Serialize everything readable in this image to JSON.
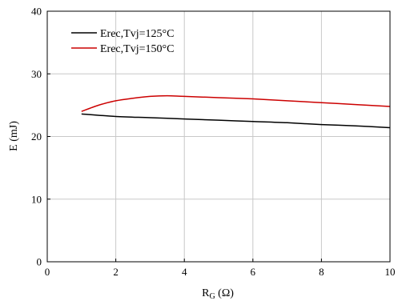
{
  "chart_data": {
    "type": "line",
    "xlabel": "R",
    "xlabel_sub": "G",
    "xlabel_unit": " (Ω)",
    "ylabel": "E (mJ)",
    "xlim": [
      0,
      10
    ],
    "ylim": [
      0,
      40
    ],
    "x_ticks": [
      "0",
      "2",
      "4",
      "6",
      "8",
      "10"
    ],
    "y_ticks": [
      "0",
      "10",
      "20",
      "30",
      "40"
    ],
    "grid": true,
    "legend_position": "top-left",
    "series": [
      {
        "name": "Erec,Tvj=125°C",
        "color": "#000000",
        "x": [
          1,
          2,
          3,
          4,
          5,
          6,
          7,
          8,
          9,
          10
        ],
        "y": [
          23.6,
          23.2,
          23.0,
          22.8,
          22.6,
          22.4,
          22.2,
          21.9,
          21.7,
          21.4
        ]
      },
      {
        "name": "Erec,Tvj=150°C",
        "color": "#cc0000",
        "x": [
          1,
          1.5,
          2,
          2.5,
          3,
          3.5,
          4,
          5,
          6,
          7,
          8,
          9,
          10
        ],
        "y": [
          24.0,
          25.0,
          25.7,
          26.1,
          26.4,
          26.5,
          26.4,
          26.2,
          26.0,
          25.7,
          25.4,
          25.1,
          24.8
        ]
      }
    ]
  }
}
